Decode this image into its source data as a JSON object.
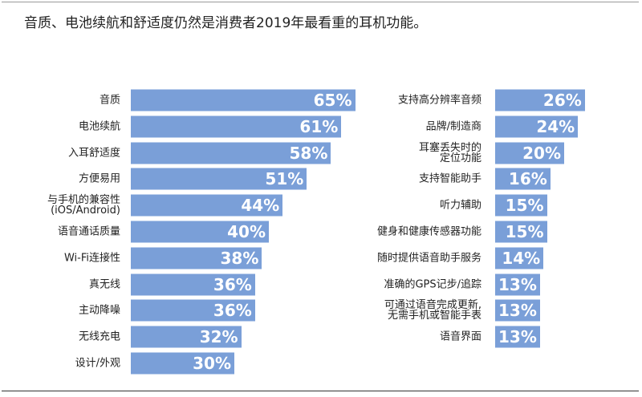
{
  "title": "音质、电池续航和舒适度仍然是消费者2019年最看重的耳机功能。",
  "chart_data": [
    {
      "type": "bar",
      "orientation": "horizontal",
      "color": "#7a9fd8",
      "categories": [
        "音质",
        "电池续航",
        "入耳舒适度",
        "方便易用",
        "与手机的兼容性\n(iOS/Android)",
        "语音通话质量",
        "Wi-Fi连接性",
        "真无线",
        "主动降噪",
        "无线充电",
        "设计/外观"
      ],
      "values": [
        65,
        61,
        58,
        51,
        44,
        40,
        38,
        36,
        36,
        32,
        30
      ],
      "value_labels": [
        "65%",
        "61%",
        "58%",
        "51%",
        "44%",
        "40%",
        "38%",
        "36%",
        "36%",
        "32%",
        "30%"
      ]
    },
    {
      "type": "bar",
      "orientation": "horizontal",
      "color": "#7a9fd8",
      "categories": [
        "支持高分辨率音频",
        "品牌/制造商",
        "耳塞丢失时的\n定位功能",
        "支持智能助手",
        "听力辅助",
        "健身和健康传感器功能",
        "随时提供语音助手服务",
        "准确的GPS记步/追踪",
        "可通过语音完成更新,\n无需手机或智能手表",
        "语音界面"
      ],
      "values": [
        26,
        24,
        20,
        16,
        15,
        15,
        14,
        13,
        13,
        13
      ],
      "value_labels": [
        "26%",
        "24%",
        "20%",
        "16%",
        "15%",
        "15%",
        "14%",
        "13%",
        "13%",
        "13%"
      ]
    }
  ]
}
